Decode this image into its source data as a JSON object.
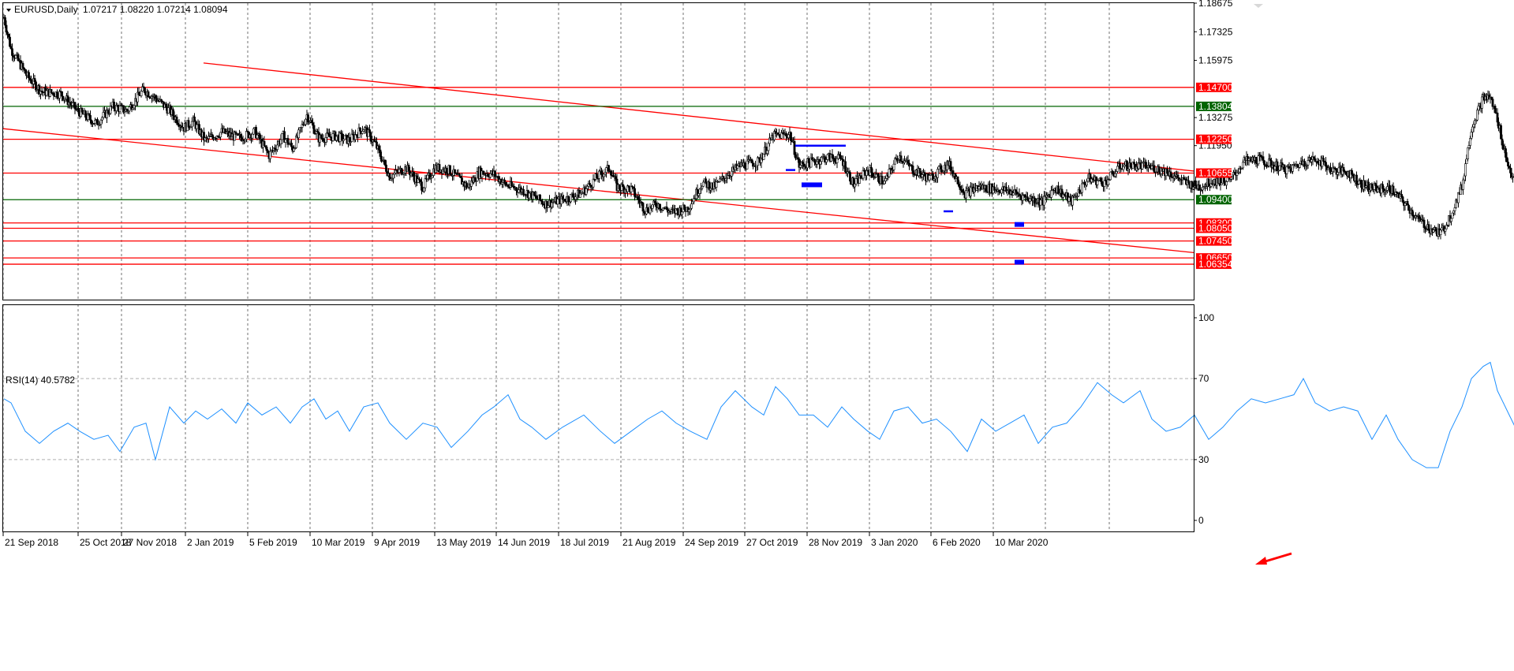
{
  "header": {
    "symbol": "EURUSD,Daily",
    "ohlc": "1.07217 1.08220 1.07214 1.08094",
    "dropdown_icon": "triangle-down-icon"
  },
  "colors": {
    "background": "#ffffff",
    "bull_candle": "#ffffff",
    "bear_candle": "#000000",
    "level_red": "#ff0000",
    "level_green": "#006400",
    "rsi_line": "#1e90ff",
    "marker_blue": "#0000ff",
    "grid": "#b0b0b0"
  },
  "chart_data": [
    {
      "type": "candlestick",
      "panel": "price",
      "symbol": "EURUSD",
      "timeframe": "Daily",
      "last_bar": {
        "open": 1.07217,
        "high": 1.0822,
        "low": 1.07214,
        "close": 1.08094
      },
      "y_range": [
        1.054,
        1.18675
      ],
      "y_ticks": [
        "1.18675",
        "1.17325",
        "1.15975",
        "1.13275",
        "1.11950"
      ],
      "x_ticks": [
        "21 Sep 2018",
        "25 Oct 2018",
        "27 Nov 2018",
        "2 Jan 2019",
        "5 Feb 2019",
        "10 Mar 2019",
        "9 Apr 2019",
        "13 May 2019",
        "14 Jun 2019",
        "18 Jul 2019",
        "21 Aug 2019",
        "24 Sep 2019",
        "27 Oct 2019",
        "28 Nov 2019",
        "3 Jan 2020",
        "6 Feb 2020",
        "10 Mar 2020"
      ],
      "price_path": [
        [
          0,
          1.18
        ],
        [
          6,
          1.165
        ],
        [
          20,
          1.152
        ],
        [
          32,
          1.145
        ],
        [
          48,
          1.144
        ],
        [
          62,
          1.136
        ],
        [
          78,
          1.13
        ],
        [
          92,
          1.138
        ],
        [
          104,
          1.136
        ],
        [
          118,
          1.146
        ],
        [
          128,
          1.142
        ],
        [
          140,
          1.136
        ],
        [
          152,
          1.128
        ],
        [
          160,
          1.131
        ],
        [
          170,
          1.122
        ],
        [
          184,
          1.126
        ],
        [
          198,
          1.123
        ],
        [
          212,
          1.126
        ],
        [
          224,
          1.115
        ],
        [
          236,
          1.124
        ],
        [
          244,
          1.118
        ],
        [
          256,
          1.134
        ],
        [
          266,
          1.123
        ],
        [
          280,
          1.124
        ],
        [
          292,
          1.122
        ],
        [
          304,
          1.128
        ],
        [
          314,
          1.12
        ],
        [
          326,
          1.105
        ],
        [
          340,
          1.109
        ],
        [
          354,
          1.1
        ],
        [
          364,
          1.109
        ],
        [
          376,
          1.108
        ],
        [
          392,
          1.1
        ],
        [
          402,
          1.107
        ],
        [
          414,
          1.106
        ],
        [
          424,
          1.101
        ],
        [
          440,
          1.098
        ],
        [
          458,
          1.092
        ],
        [
          472,
          1.094
        ],
        [
          488,
          1.097
        ],
        [
          502,
          1.105
        ],
        [
          512,
          1.109
        ],
        [
          518,
          1.1
        ],
        [
          530,
          1.099
        ],
        [
          542,
          1.089
        ],
        [
          552,
          1.092
        ],
        [
          564,
          1.088
        ],
        [
          578,
          1.09
        ],
        [
          590,
          1.102
        ],
        [
          600,
          1.1
        ],
        [
          612,
          1.106
        ],
        [
          622,
          1.11
        ],
        [
          638,
          1.112
        ],
        [
          650,
          1.124
        ],
        [
          664,
          1.125
        ],
        [
          672,
          1.11
        ],
        [
          684,
          1.112
        ],
        [
          696,
          1.114
        ],
        [
          708,
          1.113
        ],
        [
          718,
          1.101
        ],
        [
          730,
          1.108
        ],
        [
          744,
          1.102
        ],
        [
          756,
          1.115
        ],
        [
          768,
          1.108
        ],
        [
          782,
          1.104
        ],
        [
          798,
          1.111
        ],
        [
          812,
          1.097
        ],
        [
          824,
          1.1
        ],
        [
          838,
          1.099
        ],
        [
          850,
          1.098
        ],
        [
          864,
          1.095
        ],
        [
          878,
          1.093
        ],
        [
          888,
          1.1
        ],
        [
          902,
          1.093
        ],
        [
          916,
          1.104
        ],
        [
          930,
          1.102
        ],
        [
          944,
          1.11
        ],
        [
          958,
          1.11
        ],
        [
          972,
          1.109
        ],
        [
          984,
          1.107
        ],
        [
          998,
          1.102
        ],
        [
          1010,
          1.1
        ],
        [
          1022,
          1.103
        ],
        [
          1036,
          1.103
        ],
        [
          1048,
          1.112
        ],
        [
          1060,
          1.113
        ],
        [
          1074,
          1.11
        ],
        [
          1086,
          1.108
        ],
        [
          1098,
          1.112
        ],
        [
          1110,
          1.113
        ],
        [
          1122,
          1.108
        ],
        [
          1136,
          1.107
        ],
        [
          1148,
          1.101
        ],
        [
          1160,
          1.099
        ],
        [
          1172,
          1.099
        ],
        [
          1184,
          1.092
        ],
        [
          1196,
          1.084
        ],
        [
          1206,
          1.08
        ],
        [
          1214,
          1.078
        ],
        [
          1222,
          1.086
        ],
        [
          1232,
          1.1
        ],
        [
          1240,
          1.128
        ],
        [
          1250,
          1.142
        ],
        [
          1256,
          1.142
        ],
        [
          1262,
          1.132
        ],
        [
          1270,
          1.112
        ],
        [
          1278,
          1.1
        ],
        [
          1286,
          1.07
        ],
        [
          1292,
          1.068
        ],
        [
          1298,
          1.081
        ]
      ],
      "levels": [
        {
          "label": "1.14700",
          "value": 1.147,
          "color": "#ff0000"
        },
        {
          "label": "1.13804",
          "value": 1.13804,
          "color": "#006400"
        },
        {
          "label": "1.12250",
          "value": 1.1225,
          "color": "#ff0000"
        },
        {
          "label": "1.10655",
          "value": 1.10655,
          "color": "#ff0000"
        },
        {
          "label": "1.09400",
          "value": 1.094,
          "color": "#006400"
        },
        {
          "label": "1.08300",
          "value": 1.083,
          "color": "#ff0000"
        },
        {
          "label": "1.08050",
          "value": 1.0805,
          "color": "#ff0000"
        },
        {
          "label": "1.07450",
          "value": 1.0745,
          "color": "#ff0000"
        },
        {
          "label": "1.06650",
          "value": 1.0665,
          "color": "#ff0000"
        },
        {
          "label": "1.06354",
          "value": 1.06354,
          "color": "#ff0000"
        }
      ],
      "trendlines": [
        {
          "name": "upper-channel",
          "from": [
            258,
            1.1585
          ],
          "to": [
            1513,
            1.1075
          ]
        },
        {
          "name": "lower-channel",
          "from": [
            4,
            1.1275
          ],
          "to": [
            1513,
            1.069
          ]
        }
      ],
      "markers": [
        {
          "type": "segment",
          "from": [
            1008,
            1.1195
          ],
          "to": [
            1072,
            1.1195
          ]
        },
        {
          "type": "segment",
          "from": [
            996,
            1.108
          ],
          "to": [
            1008,
            1.108
          ]
        },
        {
          "type": "block",
          "from": [
            1016,
            1.101
          ],
          "to": [
            1042,
            1.101
          ]
        },
        {
          "type": "segment",
          "from": [
            1196,
            1.0885
          ],
          "to": [
            1208,
            1.0885
          ]
        },
        {
          "type": "block",
          "from": [
            1286,
            1.0823
          ],
          "to": [
            1298,
            1.0823
          ]
        },
        {
          "type": "block",
          "from": [
            1286,
            1.0645
          ],
          "to": [
            1298,
            1.0645
          ]
        }
      ]
    },
    {
      "type": "line",
      "panel": "rsi",
      "title": "RSI(14) 40.5782",
      "y_range": [
        0,
        100
      ],
      "y_ticks": [
        "100",
        "70",
        "30",
        "0"
      ],
      "reference_levels": [
        70,
        30
      ],
      "last_value": 40.5782,
      "series": [
        {
          "values": [
            [
              0,
              60
            ],
            [
              6,
              58
            ],
            [
              18,
              44
            ],
            [
              30,
              38
            ],
            [
              42,
              44
            ],
            [
              54,
              48
            ],
            [
              64,
              44
            ],
            [
              76,
              40
            ],
            [
              88,
              42
            ],
            [
              98,
              34
            ],
            [
              110,
              46
            ],
            [
              120,
              48
            ],
            [
              128,
              30
            ],
            [
              140,
              56
            ],
            [
              152,
              48
            ],
            [
              162,
              54
            ],
            [
              172,
              50
            ],
            [
              184,
              55
            ],
            [
              196,
              48
            ],
            [
              206,
              58
            ],
            [
              218,
              52
            ],
            [
              230,
              56
            ],
            [
              242,
              48
            ],
            [
              252,
              56
            ],
            [
              262,
              60
            ],
            [
              272,
              50
            ],
            [
              282,
              54
            ],
            [
              292,
              44
            ],
            [
              304,
              56
            ],
            [
              316,
              58
            ],
            [
              326,
              48
            ],
            [
              340,
              40
            ],
            [
              354,
              48
            ],
            [
              366,
              46
            ],
            [
              378,
              36
            ],
            [
              392,
              44
            ],
            [
              404,
              52
            ],
            [
              414,
              56
            ],
            [
              426,
              62
            ],
            [
              436,
              50
            ],
            [
              446,
              46
            ],
            [
              458,
              40
            ],
            [
              472,
              46
            ],
            [
              490,
              52
            ],
            [
              504,
              44
            ],
            [
              516,
              38
            ],
            [
              530,
              44
            ],
            [
              544,
              50
            ],
            [
              556,
              54
            ],
            [
              568,
              48
            ],
            [
              580,
              44
            ],
            [
              594,
              40
            ],
            [
              606,
              56
            ],
            [
              618,
              64
            ],
            [
              632,
              56
            ],
            [
              642,
              52
            ],
            [
              652,
              66
            ],
            [
              662,
              60
            ],
            [
              672,
              52
            ],
            [
              684,
              52
            ],
            [
              696,
              46
            ],
            [
              708,
              56
            ],
            [
              718,
              50
            ],
            [
              730,
              44
            ],
            [
              740,
              40
            ],
            [
              752,
              54
            ],
            [
              764,
              56
            ],
            [
              776,
              48
            ],
            [
              788,
              50
            ],
            [
              800,
              44
            ],
            [
              814,
              34
            ],
            [
              826,
              50
            ],
            [
              838,
              44
            ],
            [
              850,
              48
            ],
            [
              862,
              52
            ],
            [
              874,
              38
            ],
            [
              886,
              46
            ],
            [
              898,
              48
            ],
            [
              910,
              56
            ],
            [
              924,
              68
            ],
            [
              936,
              62
            ],
            [
              946,
              58
            ],
            [
              960,
              64
            ],
            [
              970,
              50
            ],
            [
              982,
              44
            ],
            [
              994,
              46
            ],
            [
              1006,
              52
            ],
            [
              1018,
              40
            ],
            [
              1030,
              46
            ],
            [
              1042,
              54
            ],
            [
              1054,
              60
            ],
            [
              1066,
              58
            ],
            [
              1078,
              60
            ],
            [
              1090,
              62
            ],
            [
              1098,
              70
            ],
            [
              1108,
              58
            ],
            [
              1120,
              54
            ],
            [
              1132,
              56
            ],
            [
              1144,
              54
            ],
            [
              1156,
              40
            ],
            [
              1168,
              52
            ],
            [
              1178,
              40
            ],
            [
              1190,
              30
            ],
            [
              1202,
              26
            ],
            [
              1212,
              26
            ],
            [
              1222,
              44
            ],
            [
              1232,
              56
            ],
            [
              1240,
              70
            ],
            [
              1250,
              76
            ],
            [
              1256,
              78
            ],
            [
              1262,
              64
            ],
            [
              1272,
              52
            ],
            [
              1282,
              40
            ],
            [
              1290,
              30
            ],
            [
              1298,
              36
            ],
            [
              1304,
              40.5782
            ]
          ]
        }
      ]
    }
  ]
}
